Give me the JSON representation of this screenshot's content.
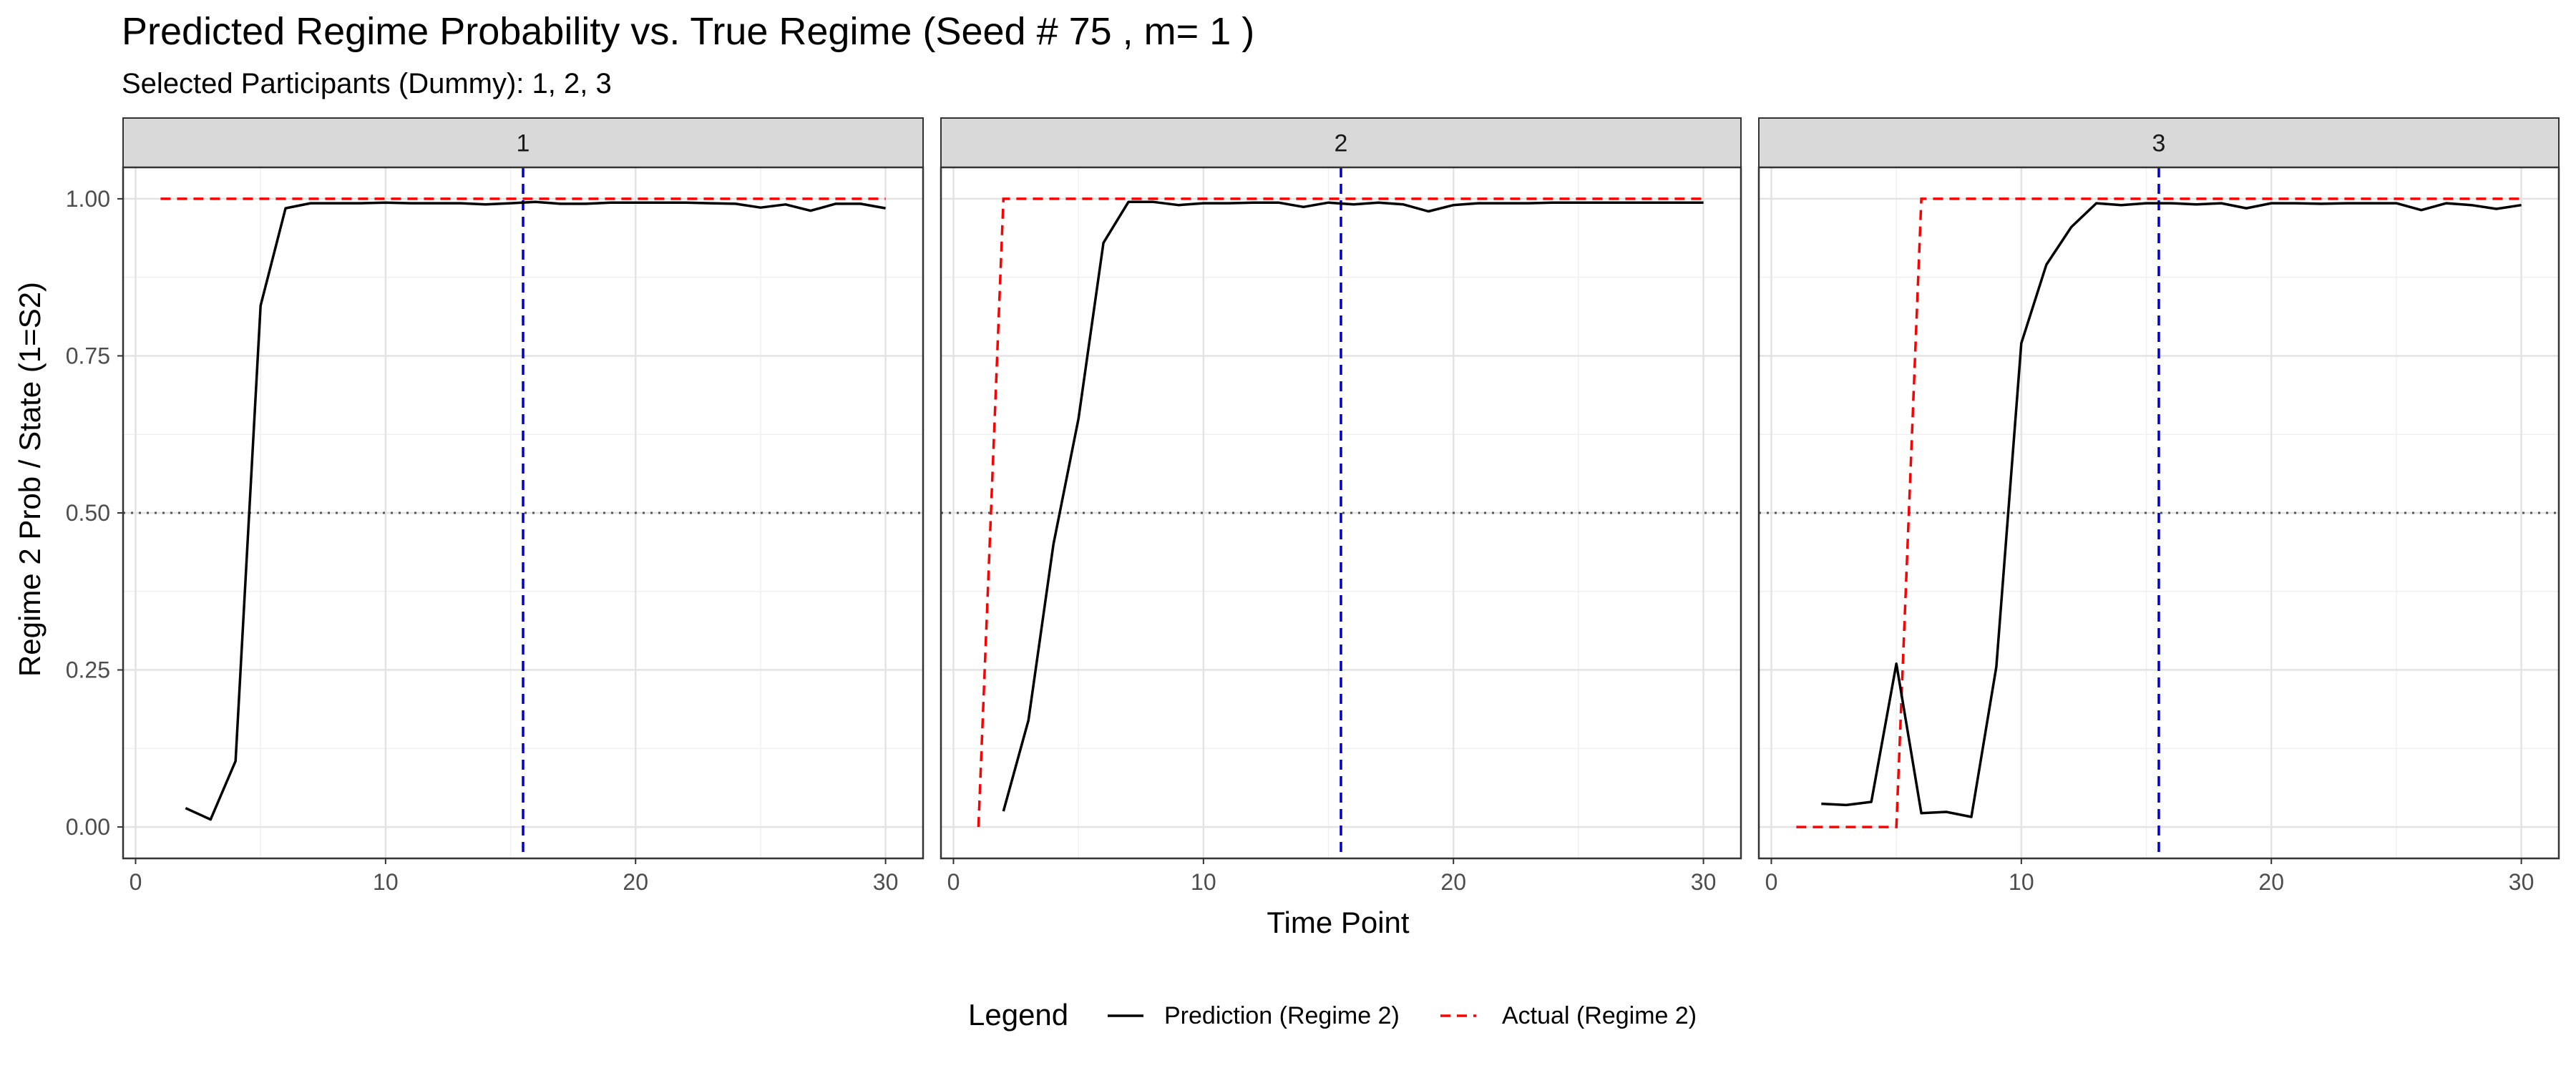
{
  "chart_data": {
    "type": "line",
    "title": "Predicted Regime Probability vs. True Regime (Seed # 75 , m= 1 )",
    "subtitle": "Selected Participants (Dummy): 1, 2, 3",
    "xlabel": "Time Point",
    "ylabel": "Regime 2 Prob / State (1=S2)",
    "xlim": [
      -0.5,
      31.5
    ],
    "ylim": [
      -0.05,
      1.05
    ],
    "x_ticks": [
      0,
      10,
      20,
      30
    ],
    "y_ticks": [
      0,
      0.25,
      0.5,
      0.75,
      1
    ],
    "y_tick_labels": [
      "0.00",
      "0.25",
      "0.50",
      "0.75",
      "1.00"
    ],
    "grid": true,
    "legend_position": "bottom",
    "legend": {
      "title": "Legend",
      "entries": [
        {
          "label": "Prediction (Regime 2)",
          "color": "#000000",
          "dash": "solid"
        },
        {
          "label": "Actual (Regime 2)",
          "color": "#ff0000",
          "dash": "dashed"
        }
      ]
    },
    "reference_lines": {
      "horizontal_y": 0.5,
      "horizontal_color": "#555555",
      "vertical_x": 15.5,
      "vertical_color": "#0000cc"
    },
    "panels": [
      {
        "strip": "1",
        "prediction": {
          "x": [
            2,
            3,
            4,
            5,
            6,
            7,
            8,
            9,
            10,
            11,
            12,
            13,
            14,
            15,
            16,
            17,
            18,
            19,
            20,
            21,
            22,
            23,
            24,
            25,
            26,
            27,
            28,
            29,
            30
          ],
          "y": [
            0.03,
            0.012,
            0.105,
            0.83,
            0.985,
            0.993,
            0.993,
            0.993,
            0.994,
            0.993,
            0.993,
            0.993,
            0.991,
            0.993,
            0.995,
            0.992,
            0.992,
            0.994,
            0.994,
            0.994,
            0.994,
            0.993,
            0.992,
            0.986,
            0.991,
            0.981,
            0.992,
            0.992,
            0.985
          ]
        },
        "actual": {
          "x": [
            1,
            1.5,
            30
          ],
          "y": [
            1,
            1,
            1
          ]
        }
      },
      {
        "strip": "2",
        "prediction": {
          "x": [
            2,
            3,
            4,
            5,
            6,
            7,
            8,
            9,
            10,
            11,
            12,
            13,
            14,
            15,
            16,
            17,
            18,
            19,
            20,
            21,
            22,
            23,
            24,
            25,
            26,
            27,
            28,
            29,
            30
          ],
          "y": [
            0.025,
            0.17,
            0.45,
            0.65,
            0.93,
            0.995,
            0.995,
            0.99,
            0.993,
            0.993,
            0.994,
            0.994,
            0.987,
            0.994,
            0.991,
            0.994,
            0.991,
            0.98,
            0.99,
            0.993,
            0.993,
            0.993,
            0.994,
            0.994,
            0.994,
            0.994,
            0.994,
            0.994,
            0.994
          ]
        },
        "actual": {
          "x": [
            1,
            2,
            30
          ],
          "y": [
            0,
            1,
            1
          ]
        }
      },
      {
        "strip": "3",
        "prediction": {
          "x": [
            2,
            3,
            4,
            5,
            6,
            7,
            8,
            9,
            10,
            11,
            12,
            13,
            14,
            15,
            16,
            17,
            18,
            19,
            20,
            21,
            22,
            23,
            24,
            25,
            26,
            27,
            28,
            29,
            30
          ],
          "y": [
            0.037,
            0.035,
            0.04,
            0.26,
            0.022,
            0.024,
            0.016,
            0.255,
            0.77,
            0.895,
            0.955,
            0.993,
            0.99,
            0.993,
            0.993,
            0.991,
            0.993,
            0.985,
            0.993,
            0.993,
            0.992,
            0.993,
            0.993,
            0.993,
            0.982,
            0.993,
            0.99,
            0.984,
            0.99
          ]
        },
        "actual": {
          "x": [
            1,
            5,
            6,
            30
          ],
          "y": [
            0,
            0,
            1,
            1
          ]
        }
      }
    ]
  }
}
